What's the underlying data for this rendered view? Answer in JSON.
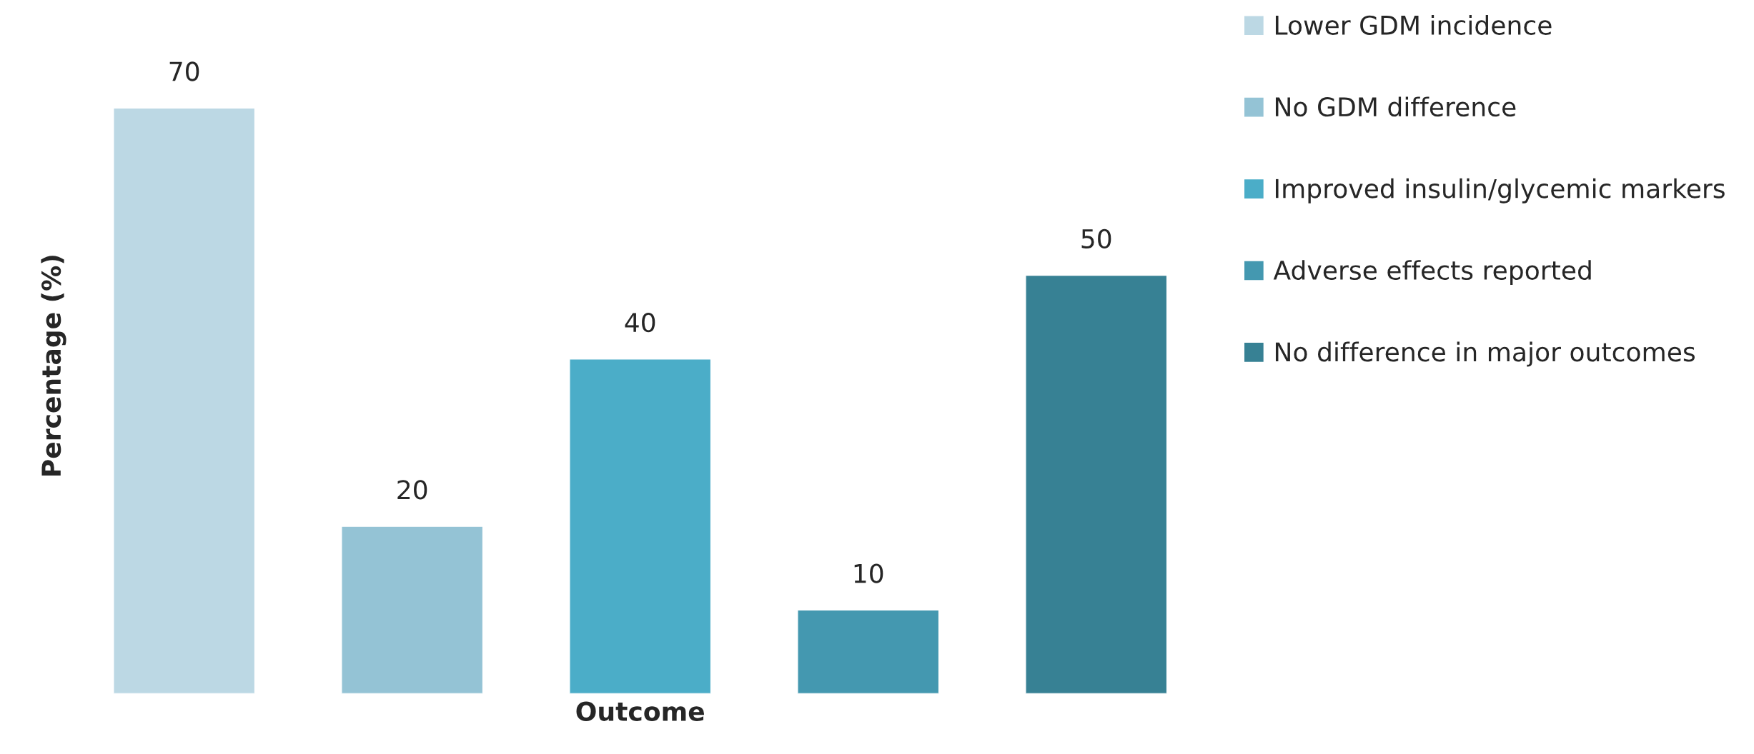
{
  "chart_data": {
    "type": "bar",
    "xlabel": "Outcome",
    "ylabel": "Percentage (%)",
    "categories": [
      null,
      null,
      null,
      null,
      null
    ],
    "series": [
      {
        "name": "Lower GDM incidence",
        "color": "#bcd8e4",
        "values": [
          70,
          null,
          null,
          null,
          null
        ]
      },
      {
        "name": "No GDM difference",
        "color": "#94c3d5",
        "values": [
          null,
          20,
          null,
          null,
          null
        ]
      },
      {
        "name": "Improved insulin/glycemic markers",
        "color": "#4badc8",
        "values": [
          null,
          null,
          40,
          null,
          null
        ]
      },
      {
        "name": "Adverse effects reported",
        "color": "#4498b0",
        "values": [
          null,
          null,
          null,
          10,
          null
        ]
      },
      {
        "name": "No difference in major outcomes",
        "color": "#378194",
        "values": [
          null,
          null,
          null,
          null,
          50
        ]
      }
    ],
    "stacked": true,
    "tick_labels": false,
    "data_labels": true,
    "legend": "right",
    "grid": false
  }
}
